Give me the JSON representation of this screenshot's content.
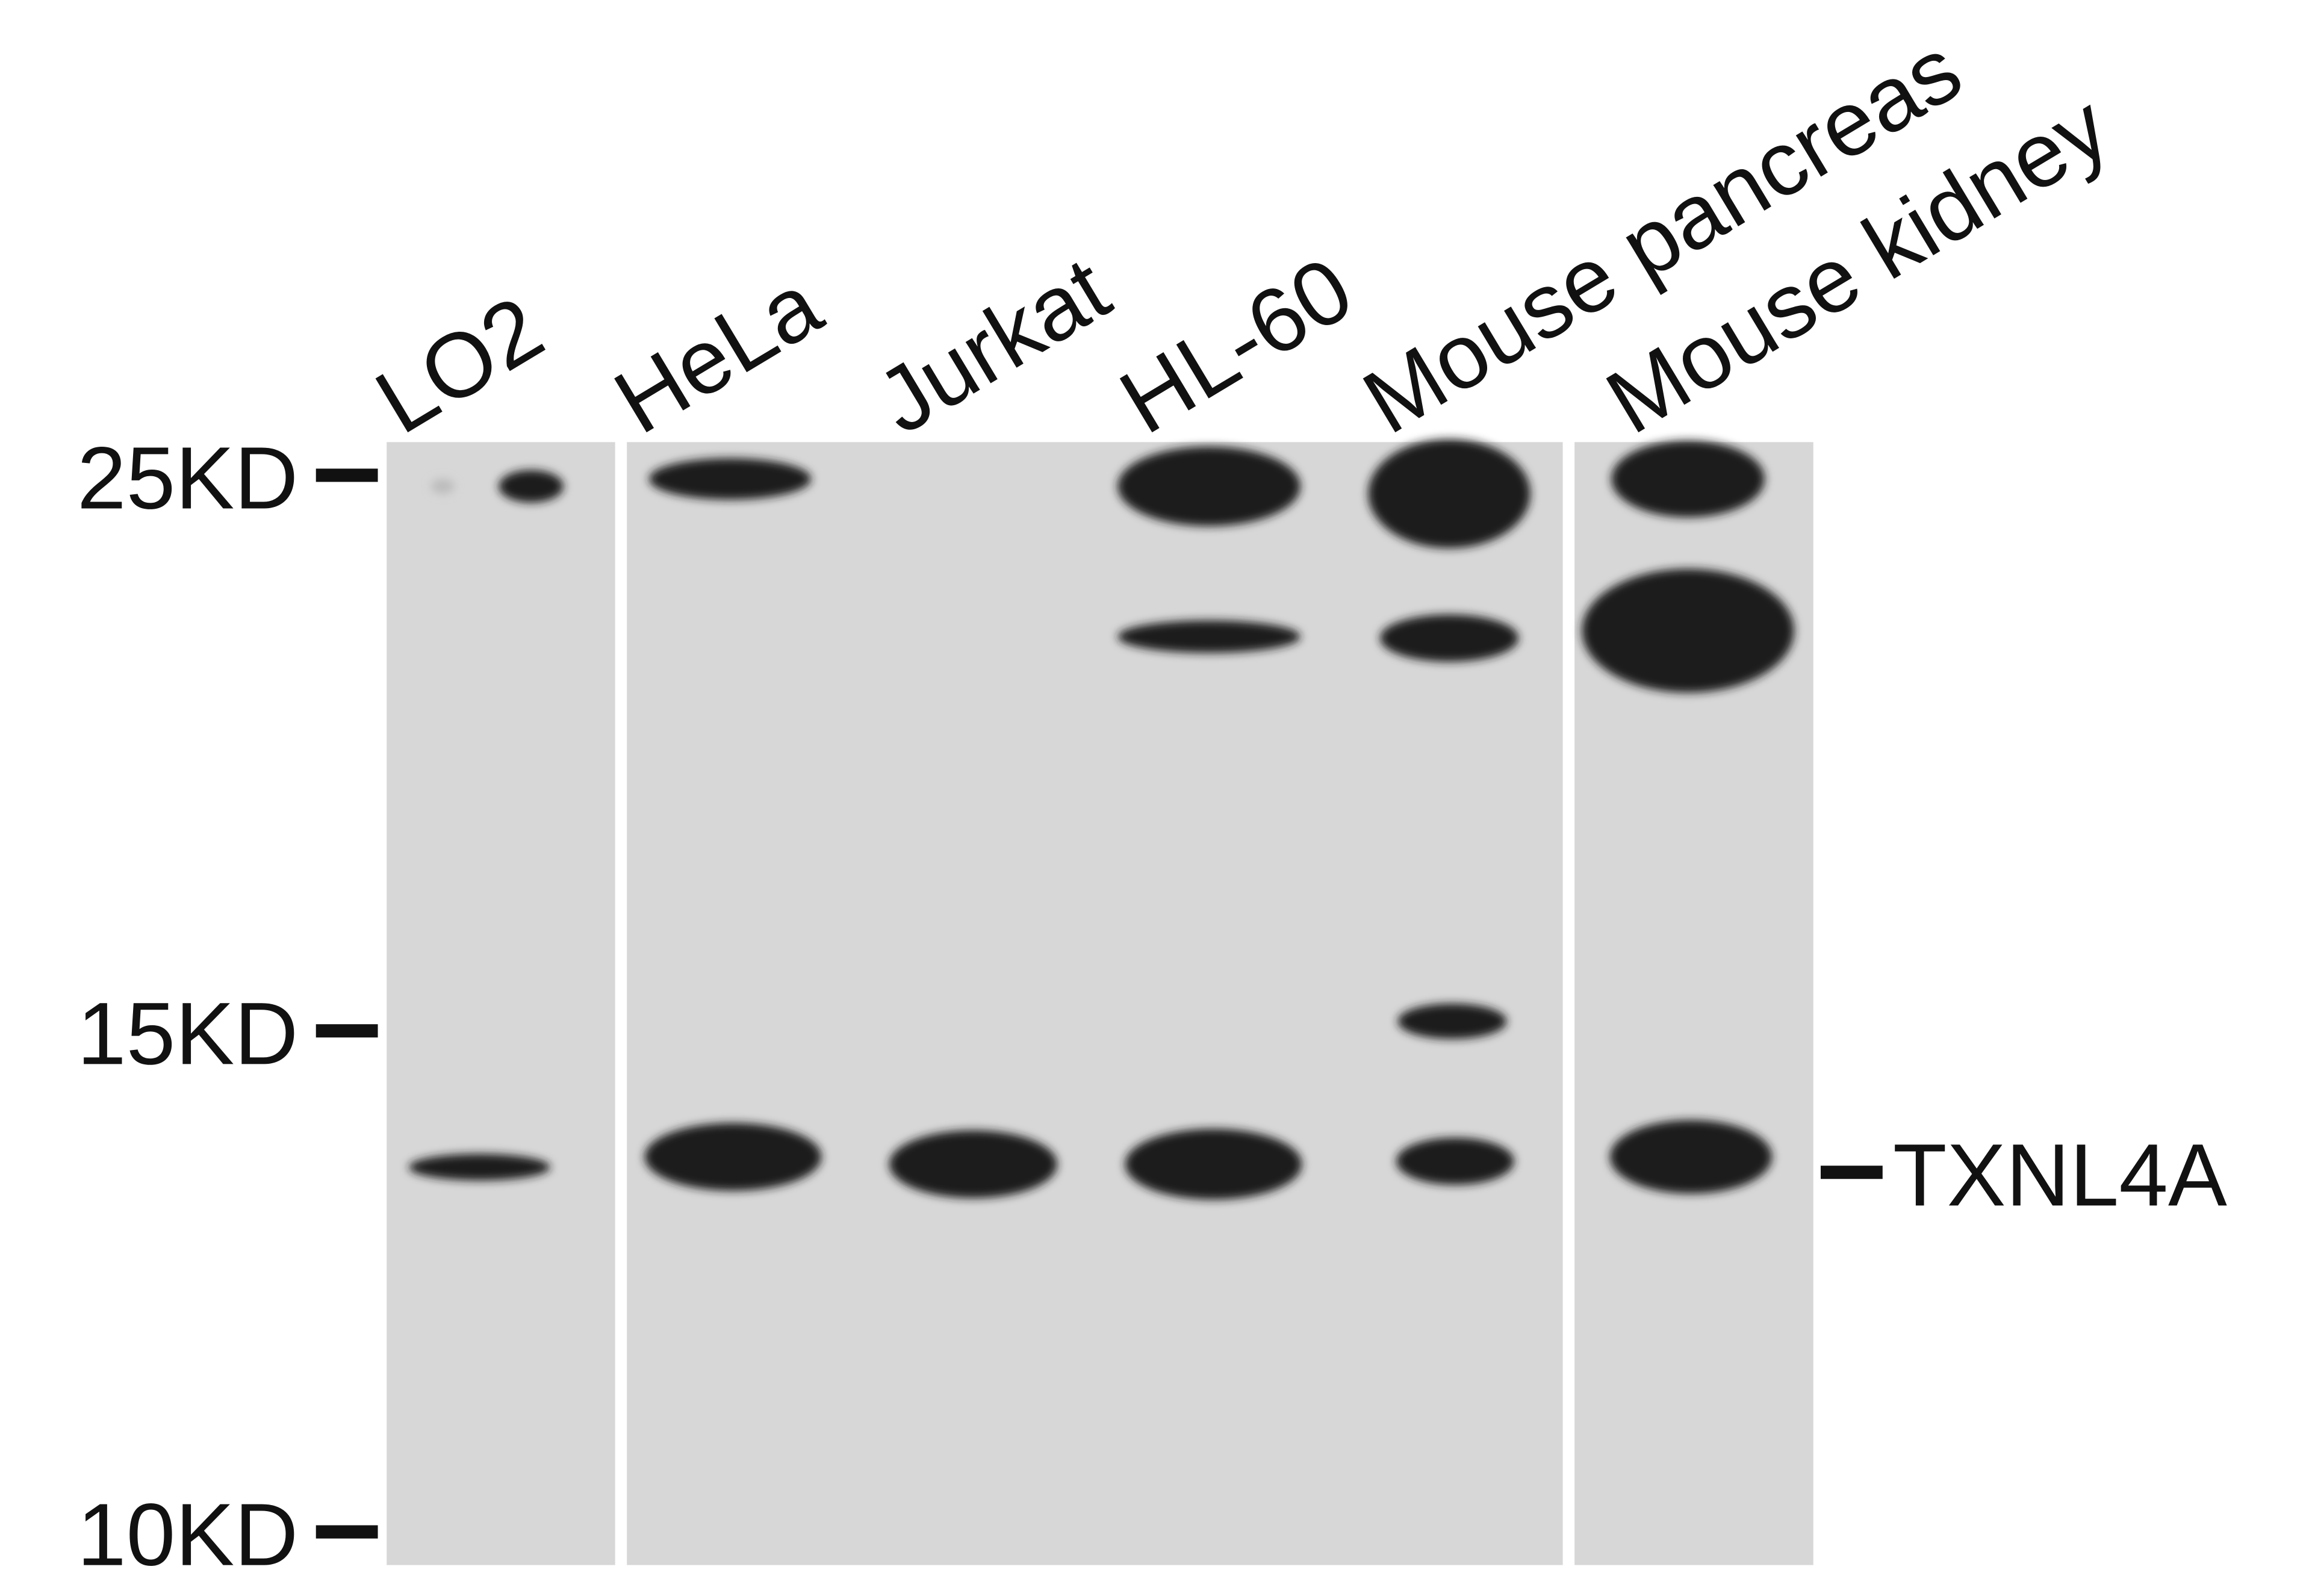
{
  "lanes": [
    "LO2",
    "HeLa",
    "Jurkat",
    "HL-60",
    "Mouse pancreas",
    "Mouse kidney"
  ],
  "markers": [
    "25KD",
    "15KD",
    "10KD"
  ],
  "band_label": "TXNL4A"
}
